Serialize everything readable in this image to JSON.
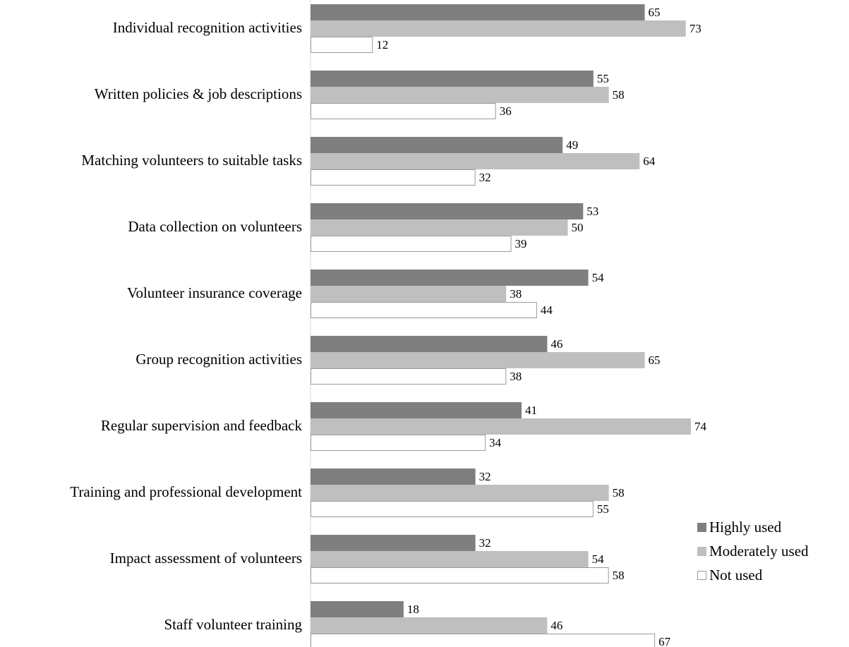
{
  "chart_data": {
    "type": "bar",
    "orientation": "horizontal",
    "categories": [
      "Individual recognition activities",
      "Written policies & job descriptions",
      "Matching volunteers to suitable tasks",
      "Data collection on volunteers",
      "Volunteer insurance coverage",
      "Group recognition activities",
      "Regular supervision and feedback",
      "Training and professional development",
      "Impact assessment of volunteers",
      "Staff volunteer training"
    ],
    "series": [
      {
        "name": "Highly used",
        "color": "#7f7f7f",
        "values": [
          65,
          55,
          49,
          53,
          54,
          46,
          41,
          32,
          32,
          18
        ]
      },
      {
        "name": "Moderately used",
        "color": "#bfbfbf",
        "values": [
          73,
          58,
          64,
          50,
          38,
          65,
          74,
          58,
          54,
          46
        ]
      },
      {
        "name": "Not used",
        "color": "#ffffff",
        "values": [
          12,
          36,
          32,
          39,
          44,
          38,
          34,
          55,
          58,
          67
        ]
      }
    ],
    "xlim": [
      0,
      80
    ],
    "grid": false,
    "legend_position": "right",
    "data_labels": true
  }
}
